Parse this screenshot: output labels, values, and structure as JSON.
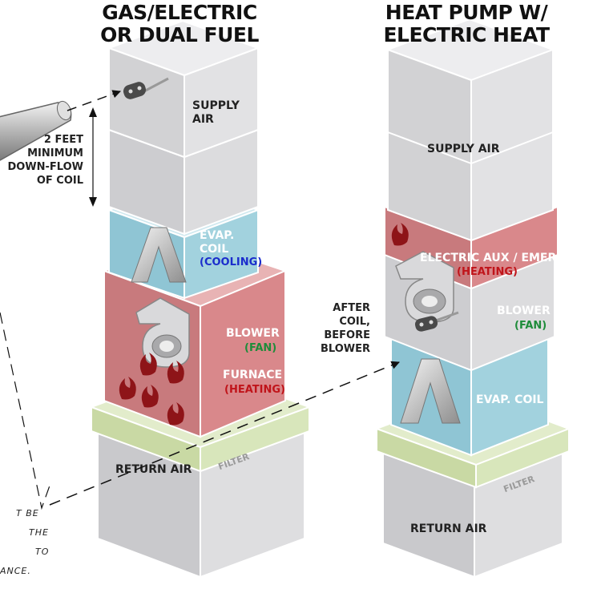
{
  "left_unit": {
    "title_line1": "GAS/ELECTRIC",
    "title_line2": "OR DUAL FUEL",
    "supply_line1": "SUPPLY",
    "supply_line2": "AIR",
    "evap_line1": "EVAP.",
    "evap_line2": "COIL",
    "evap_mode": "(COOLING)",
    "blower": "BLOWER",
    "blower_mode": "(FAN)",
    "furnace": "FURNACE",
    "furnace_mode": "(HEATING)",
    "filter": "FILTER",
    "return_air": "RETURN AIR"
  },
  "right_unit": {
    "title_line1": "HEAT PUMP W/",
    "title_line2": "ELECTRIC HEAT",
    "supply_air": "SUPPLY AIR",
    "electric": "ELECTRIC AUX / EMER.",
    "electric_mode": "(HEATING)",
    "blower": "BLOWER",
    "blower_mode": "(FAN)",
    "evap": "EVAP. COIL",
    "filter": "FILTER",
    "return_air": "RETURN AIR"
  },
  "callouts": {
    "distance_line1": "2 FEET",
    "distance_line2": "MINIMUM",
    "distance_line3": "DOWN-FLOW",
    "distance_line4": "OF COIL",
    "after_line1": "AFTER",
    "after_line2": "COIL,",
    "after_line3": "BEFORE",
    "after_line4": "BLOWER"
  },
  "note": {
    "line1": "T  BE",
    "line2": "THE",
    "line3": "TO",
    "line4": "ANCE."
  },
  "colors": {
    "box_face": "#d6d6d8",
    "box_light": "#e9e9eb",
    "evap": "#9ecfdc",
    "heat": "#d9878a",
    "filter": "#d4e3b5",
    "fan_green": "#1e8c3a",
    "heat_red": "#c0141a",
    "cool_blue": "#1a2ccc"
  }
}
